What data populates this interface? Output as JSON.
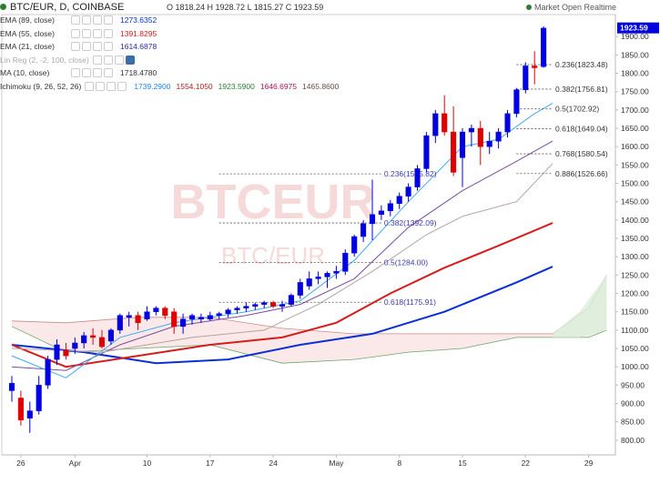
{
  "header": {
    "title": "BTC/EUR, D, COINBASE",
    "ohlc": "O 1818.24  H 1928.72  L 1815.27  C 1923.59",
    "market": "Market Open",
    "realtime": "Realtime"
  },
  "indicators": [
    {
      "name": "EMA (89, close)",
      "values": [
        "1273.6352"
      ],
      "colors": [
        "#0a2fd6"
      ]
    },
    {
      "name": "EMA (55, close)",
      "values": [
        "1391.8295"
      ],
      "colors": [
        "#d81b1b"
      ]
    },
    {
      "name": "EMA (21, close)",
      "values": [
        "1614.6878"
      ],
      "colors": [
        "#2d2ba0"
      ]
    },
    {
      "name": "Lin Reg (2, -2, 100, close)",
      "values": [],
      "colors": [],
      "muted": true
    },
    {
      "name": "MA (10, close)",
      "values": [
        "1718.4780"
      ],
      "colors": [
        "#333333"
      ]
    },
    {
      "name": "Ichimoku (9, 26, 52, 26)",
      "values": [
        "1739.2900",
        "1554.1050",
        "1923.5900",
        "1646.6975",
        "1465.8600"
      ],
      "colors": [
        "#1e88e5",
        "#b71c1c",
        "#2e7d32",
        "#ad1457",
        "#6d4c41"
      ]
    }
  ],
  "watermark": {
    "main": "BTCEUR",
    "sub": "BTC/EUR"
  },
  "chart_data": {
    "type": "candlestick",
    "symbol": "BTC/EUR",
    "interval": "D",
    "exchange": "COINBASE",
    "ylim": [
      760,
      1960
    ],
    "y_ticks": [
      800,
      850,
      900,
      950,
      1000,
      1050,
      1100,
      1150,
      1200,
      1250,
      1300,
      1350,
      1400,
      1450,
      1500,
      1550,
      1600,
      1650,
      1700,
      1750,
      1800,
      1850,
      1900
    ],
    "x_ticks": [
      {
        "i": 1,
        "label": "26"
      },
      {
        "i": 7,
        "label": "Apr"
      },
      {
        "i": 15,
        "label": "10"
      },
      {
        "i": 22,
        "label": "17"
      },
      {
        "i": 29,
        "label": "24"
      },
      {
        "i": 36,
        "label": "May"
      },
      {
        "i": 43,
        "label": "8"
      },
      {
        "i": 50,
        "label": "15"
      },
      {
        "i": 57,
        "label": "22"
      },
      {
        "i": 64,
        "label": "29"
      }
    ],
    "x_count": 66,
    "last_price": "1923.59",
    "candles": [
      {
        "o": 935,
        "h": 975,
        "l": 905,
        "c": 955
      },
      {
        "o": 915,
        "h": 935,
        "l": 840,
        "c": 855
      },
      {
        "o": 860,
        "h": 905,
        "l": 820,
        "c": 880
      },
      {
        "o": 880,
        "h": 975,
        "l": 870,
        "c": 950
      },
      {
        "o": 950,
        "h": 1030,
        "l": 940,
        "c": 1020
      },
      {
        "o": 1020,
        "h": 1075,
        "l": 1005,
        "c": 1060
      },
      {
        "o": 1045,
        "h": 1065,
        "l": 1020,
        "c": 1030
      },
      {
        "o": 1050,
        "h": 1080,
        "l": 1035,
        "c": 1065
      },
      {
        "o": 1065,
        "h": 1095,
        "l": 1050,
        "c": 1085
      },
      {
        "o": 1085,
        "h": 1105,
        "l": 1060,
        "c": 1080
      },
      {
        "o": 1080,
        "h": 1100,
        "l": 1050,
        "c": 1055
      },
      {
        "o": 1070,
        "h": 1105,
        "l": 1060,
        "c": 1100
      },
      {
        "o": 1100,
        "h": 1145,
        "l": 1090,
        "c": 1140
      },
      {
        "o": 1135,
        "h": 1150,
        "l": 1110,
        "c": 1140
      },
      {
        "o": 1140,
        "h": 1150,
        "l": 1100,
        "c": 1120
      },
      {
        "o": 1130,
        "h": 1165,
        "l": 1125,
        "c": 1150
      },
      {
        "o": 1150,
        "h": 1165,
        "l": 1140,
        "c": 1160
      },
      {
        "o": 1160,
        "h": 1165,
        "l": 1130,
        "c": 1140
      },
      {
        "o": 1150,
        "h": 1160,
        "l": 1090,
        "c": 1110
      },
      {
        "o": 1110,
        "h": 1145,
        "l": 1090,
        "c": 1130
      },
      {
        "o": 1130,
        "h": 1145,
        "l": 1115,
        "c": 1140
      },
      {
        "o": 1130,
        "h": 1145,
        "l": 1120,
        "c": 1135
      },
      {
        "o": 1130,
        "h": 1150,
        "l": 1125,
        "c": 1140
      },
      {
        "o": 1140,
        "h": 1150,
        "l": 1130,
        "c": 1145
      },
      {
        "o": 1145,
        "h": 1160,
        "l": 1135,
        "c": 1155
      },
      {
        "o": 1155,
        "h": 1165,
        "l": 1145,
        "c": 1160
      },
      {
        "o": 1160,
        "h": 1175,
        "l": 1150,
        "c": 1165
      },
      {
        "o": 1165,
        "h": 1175,
        "l": 1155,
        "c": 1170
      },
      {
        "o": 1170,
        "h": 1180,
        "l": 1160,
        "c": 1175
      },
      {
        "o": 1175,
        "h": 1180,
        "l": 1160,
        "c": 1165
      },
      {
        "o": 1165,
        "h": 1180,
        "l": 1150,
        "c": 1170
      },
      {
        "o": 1170,
        "h": 1200,
        "l": 1165,
        "c": 1195
      },
      {
        "o": 1195,
        "h": 1240,
        "l": 1185,
        "c": 1230
      },
      {
        "o": 1220,
        "h": 1260,
        "l": 1210,
        "c": 1240
      },
      {
        "o": 1240,
        "h": 1260,
        "l": 1225,
        "c": 1245
      },
      {
        "o": 1245,
        "h": 1260,
        "l": 1215,
        "c": 1255
      },
      {
        "o": 1255,
        "h": 1275,
        "l": 1240,
        "c": 1260
      },
      {
        "o": 1260,
        "h": 1320,
        "l": 1250,
        "c": 1310
      },
      {
        "o": 1310,
        "h": 1360,
        "l": 1300,
        "c": 1355
      },
      {
        "o": 1355,
        "h": 1400,
        "l": 1340,
        "c": 1390
      },
      {
        "o": 1390,
        "h": 1510,
        "l": 1345,
        "c": 1415
      },
      {
        "o": 1415,
        "h": 1440,
        "l": 1400,
        "c": 1425
      },
      {
        "o": 1425,
        "h": 1455,
        "l": 1410,
        "c": 1445
      },
      {
        "o": 1445,
        "h": 1475,
        "l": 1430,
        "c": 1465
      },
      {
        "o": 1465,
        "h": 1500,
        "l": 1450,
        "c": 1490
      },
      {
        "o": 1490,
        "h": 1550,
        "l": 1480,
        "c": 1540
      },
      {
        "o": 1540,
        "h": 1640,
        "l": 1530,
        "c": 1630
      },
      {
        "o": 1630,
        "h": 1700,
        "l": 1610,
        "c": 1690
      },
      {
        "o": 1690,
        "h": 1740,
        "l": 1630,
        "c": 1640
      },
      {
        "o": 1640,
        "h": 1710,
        "l": 1520,
        "c": 1530
      },
      {
        "o": 1570,
        "h": 1650,
        "l": 1490,
        "c": 1640
      },
      {
        "o": 1640,
        "h": 1660,
        "l": 1600,
        "c": 1650
      },
      {
        "o": 1650,
        "h": 1670,
        "l": 1550,
        "c": 1600
      },
      {
        "o": 1600,
        "h": 1640,
        "l": 1580,
        "c": 1615
      },
      {
        "o": 1615,
        "h": 1650,
        "l": 1595,
        "c": 1640
      },
      {
        "o": 1640,
        "h": 1700,
        "l": 1625,
        "c": 1690
      },
      {
        "o": 1690,
        "h": 1760,
        "l": 1680,
        "c": 1755
      },
      {
        "o": 1755,
        "h": 1830,
        "l": 1745,
        "c": 1820
      },
      {
        "o": 1820,
        "h": 1860,
        "l": 1770,
        "c": 1815
      },
      {
        "o": 1818,
        "h": 1928,
        "l": 1815,
        "c": 1923
      }
    ],
    "fib_levels": [
      {
        "label": "0.236(1823.48)",
        "y": 1823.48,
        "i0": 56,
        "i1": 60
      },
      {
        "label": "0.382(1756.81)",
        "y": 1756.81,
        "i0": 56,
        "i1": 60
      },
      {
        "label": "0.5(1702.92)",
        "y": 1702.92,
        "i0": 56,
        "i1": 60
      },
      {
        "label": "0.618(1649.04)",
        "y": 1649.04,
        "i0": 56,
        "i1": 60
      },
      {
        "label": "0.768(1580.54)",
        "y": 1580.54,
        "i0": 56,
        "i1": 60
      },
      {
        "label": "0.886(1526.66)",
        "y": 1526.66,
        "i0": 56,
        "i1": 60
      },
      {
        "label": "0.236(1525.82)",
        "y": 1525.82,
        "i0": 23,
        "i1": 41
      },
      {
        "label": "0.382(1392.09)",
        "y": 1392.09,
        "i0": 23,
        "i1": 41
      },
      {
        "label": "0.5(1284.00)",
        "y": 1284.0,
        "i0": 23,
        "i1": 41
      },
      {
        "label": "0.618(1175.91)",
        "y": 1175.91,
        "i0": 23,
        "i1": 41
      }
    ],
    "lines": [
      {
        "name": "EMA (89, close)",
        "color": "#0a2fd6",
        "points": [
          [
            0,
            1060
          ],
          [
            8,
            1040
          ],
          [
            16,
            1010
          ],
          [
            24,
            1020
          ],
          [
            32,
            1060
          ],
          [
            40,
            1090
          ],
          [
            48,
            1150
          ],
          [
            56,
            1230
          ],
          [
            60,
            1273
          ]
        ]
      },
      {
        "name": "EMA (55, close)",
        "color": "#d81b1b",
        "points": [
          [
            0,
            1060
          ],
          [
            6,
            1000
          ],
          [
            14,
            1030
          ],
          [
            22,
            1060
          ],
          [
            30,
            1080
          ],
          [
            36,
            1120
          ],
          [
            42,
            1200
          ],
          [
            48,
            1270
          ],
          [
            54,
            1330
          ],
          [
            60,
            1392
          ]
        ]
      },
      {
        "name": "EMA (21, close)",
        "color": "#7a4ea0",
        "points": [
          [
            0,
            1000
          ],
          [
            6,
            990
          ],
          [
            12,
            1060
          ],
          [
            18,
            1110
          ],
          [
            26,
            1140
          ],
          [
            32,
            1170
          ],
          [
            38,
            1240
          ],
          [
            44,
            1380
          ],
          [
            50,
            1480
          ],
          [
            56,
            1560
          ],
          [
            60,
            1615
          ]
        ]
      },
      {
        "name": "MA (10, close)",
        "color": "#3fa9f5",
        "points": [
          [
            0,
            1030
          ],
          [
            6,
            970
          ],
          [
            12,
            1080
          ],
          [
            18,
            1120
          ],
          [
            26,
            1150
          ],
          [
            32,
            1180
          ],
          [
            38,
            1290
          ],
          [
            44,
            1450
          ],
          [
            50,
            1600
          ],
          [
            54,
            1620
          ],
          [
            58,
            1690
          ],
          [
            60,
            1718
          ]
        ]
      },
      {
        "name": "Ichimoku (9, 26, 52, 26)",
        "color": "#b8a0a0",
        "points": [
          [
            0,
            1050
          ],
          [
            10,
            1040
          ],
          [
            20,
            1080
          ],
          [
            28,
            1100
          ],
          [
            34,
            1170
          ],
          [
            40,
            1260
          ],
          [
            46,
            1360
          ],
          [
            50,
            1410
          ],
          [
            56,
            1450
          ],
          [
            60,
            1554
          ]
        ]
      }
    ],
    "cloud": {
      "upper": [
        [
          0,
          1125
        ],
        [
          6,
          1120
        ],
        [
          14,
          1135
        ],
        [
          22,
          1135
        ],
        [
          30,
          1105
        ],
        [
          38,
          1090
        ],
        [
          44,
          1090
        ],
        [
          50,
          1090
        ],
        [
          56,
          1090
        ],
        [
          60,
          1090
        ],
        [
          64,
          1160
        ],
        [
          66,
          1250
        ]
      ],
      "lower": [
        [
          0,
          1110
        ],
        [
          6,
          1040
        ],
        [
          14,
          1050
        ],
        [
          22,
          1060
        ],
        [
          30,
          1010
        ],
        [
          38,
          1020
        ],
        [
          44,
          1040
        ],
        [
          50,
          1050
        ],
        [
          56,
          1080
        ],
        [
          60,
          1080
        ],
        [
          64,
          1080
        ],
        [
          66,
          1100
        ]
      ]
    }
  }
}
